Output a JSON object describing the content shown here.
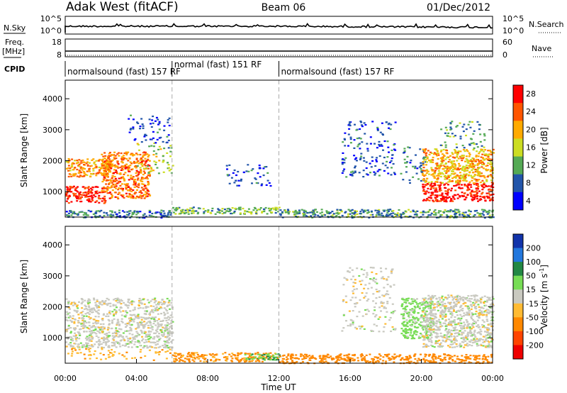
{
  "header": {
    "station": "Adak West (fitACF)",
    "beam": "Beam 06",
    "date": "01/Dec/2012"
  },
  "status_panel": {
    "nsky_label": "N.Sky",
    "nsearch_label": "N.Search",
    "nsky_ticks": [
      "10^5",
      "10^0"
    ],
    "nsearch_ticks": [
      "10^5",
      "10^0"
    ],
    "freq_label_line1": "Freq.",
    "freq_label_line2": "[MHz]",
    "freq_ticks": [
      "18",
      "8"
    ],
    "nave_label": "Nave",
    "nave_ticks": [
      "60",
      "0"
    ],
    "cpid_label": "CPID",
    "cpid_segments": [
      {
        "label": "normalsound (fast) 157 RF",
        "start_h": 0,
        "end_h": 6
      },
      {
        "label": "normal (fast) 151 RF",
        "start_h": 6,
        "end_h": 12
      },
      {
        "label": "normalsound (fast) 157 RF",
        "start_h": 12,
        "end_h": 24
      }
    ]
  },
  "time_axis": {
    "label": "Time UT",
    "ticks": [
      "00:00",
      "04:00",
      "08:00",
      "12:00",
      "16:00",
      "20:00",
      "00:00"
    ]
  },
  "range_axis": {
    "label": "Slant Range [km]",
    "ticks": [
      "1000",
      "2000",
      "3000",
      "4000"
    ]
  },
  "power_colorbar": {
    "label": "Power [dB]",
    "ticks": [
      "28",
      "24",
      "20",
      "16",
      "12",
      "8",
      "4"
    ],
    "colors": [
      "#ff0000",
      "#ff5500",
      "#ffaa00",
      "#ccdd22",
      "#55aa55",
      "#2255aa",
      "#0000ff"
    ]
  },
  "velocity_colorbar": {
    "label_main": "Velocity [m s",
    "label_exp": "-1",
    "label_close": "]",
    "ticks": [
      "200",
      "100",
      "50",
      "15",
      "-15",
      "-50",
      "-100",
      "-200"
    ],
    "colors": [
      "#1133aa",
      "#2277dd",
      "#228844",
      "#77dd55",
      "#c9c9c0",
      "#ffbb33",
      "#ff8800",
      "#ff4400",
      "#ee0000"
    ]
  },
  "chart_data": [
    {
      "type": "heatmap",
      "title": "Power",
      "xlabel": "Time UT",
      "ylabel": "Slant Range [km]",
      "xlim_hours": [
        0,
        24
      ],
      "ylim_km": [
        180,
        4600
      ],
      "clim_db": [
        0,
        32
      ],
      "dashed_lines_hours": [
        6,
        12
      ],
      "echo_regions": [
        {
          "t": [
            0.0,
            6.0
          ],
          "r": [
            180,
            420
          ],
          "db": 8,
          "desc": "near-range clutter band"
        },
        {
          "t": [
            6.0,
            12.0
          ],
          "r": [
            300,
            520
          ],
          "db": 12,
          "desc": "near-range scatter"
        },
        {
          "t": [
            12.0,
            24.0
          ],
          "r": [
            180,
            450
          ],
          "db": 10,
          "desc": "near-range clutter band"
        },
        {
          "t": [
            0.0,
            2.2
          ],
          "r": [
            650,
            1200
          ],
          "db": 28,
          "desc": "strong echoes"
        },
        {
          "t": [
            0.0,
            2.5
          ],
          "r": [
            1500,
            2100
          ],
          "db": 22,
          "desc": "upper band"
        },
        {
          "t": [
            2.0,
            4.7
          ],
          "r": [
            800,
            2300
          ],
          "db": 24,
          "desc": "strong echoes"
        },
        {
          "t": [
            4.0,
            6.0
          ],
          "r": [
            1600,
            2600
          ],
          "db": 14,
          "desc": "weaker echoes"
        },
        {
          "t": [
            3.5,
            5.8
          ],
          "r": [
            2600,
            3500
          ],
          "db": 6,
          "desc": "weak far-range echoes"
        },
        {
          "t": [
            9.0,
            11.5
          ],
          "r": [
            1200,
            1900
          ],
          "db": 6,
          "desc": "sparse weak echoes"
        },
        {
          "t": [
            15.5,
            18.5
          ],
          "r": [
            1500,
            3300
          ],
          "db": 6,
          "desc": "sparse weak echoes"
        },
        {
          "t": [
            18.8,
            20.2
          ],
          "r": [
            1300,
            2500
          ],
          "db": 8,
          "desc": "weak echoes"
        },
        {
          "t": [
            20.0,
            24.0
          ],
          "r": [
            700,
            1300
          ],
          "db": 30,
          "desc": "strong echoes"
        },
        {
          "t": [
            20.0,
            24.0
          ],
          "r": [
            1300,
            2400
          ],
          "db": 20,
          "desc": "strong echoes"
        },
        {
          "t": [
            21.0,
            23.5
          ],
          "r": [
            2400,
            3300
          ],
          "db": 10,
          "desc": "weaker echoes"
        }
      ]
    },
    {
      "type": "heatmap",
      "title": "Velocity",
      "xlabel": "Time UT",
      "ylabel": "Slant Range [km]",
      "xlim_hours": [
        0,
        24
      ],
      "ylim_km": [
        180,
        4600
      ],
      "clim_ms": [
        -200,
        200
      ],
      "dashed_lines_hours": [
        6,
        12
      ],
      "echo_regions": [
        {
          "t": [
            0.0,
            6.0
          ],
          "r": [
            700,
            2300
          ],
          "v": 0,
          "desc": "low-velocity (ground scatter)"
        },
        {
          "t": [
            0.0,
            6.0
          ],
          "r": [
            300,
            700
          ],
          "v": -40,
          "desc": "weak negative"
        },
        {
          "t": [
            6.0,
            12.0
          ],
          "r": [
            250,
            550
          ],
          "v": -60,
          "desc": "negative near range"
        },
        {
          "t": [
            12.0,
            24.0
          ],
          "r": [
            200,
            500
          ],
          "v": -70,
          "desc": "negative near range"
        },
        {
          "t": [
            10.0,
            12.0
          ],
          "r": [
            300,
            500
          ],
          "v": 40,
          "desc": "positive patch"
        },
        {
          "t": [
            15.5,
            18.5
          ],
          "r": [
            1200,
            3300
          ],
          "v": 0,
          "desc": "sparse"
        },
        {
          "t": [
            18.8,
            20.5
          ],
          "r": [
            1000,
            2300
          ],
          "v": 30,
          "desc": "positive"
        },
        {
          "t": [
            20.0,
            24.0
          ],
          "r": [
            700,
            2400
          ],
          "v": 0,
          "desc": "low-velocity (ground scatter)"
        }
      ]
    }
  ]
}
